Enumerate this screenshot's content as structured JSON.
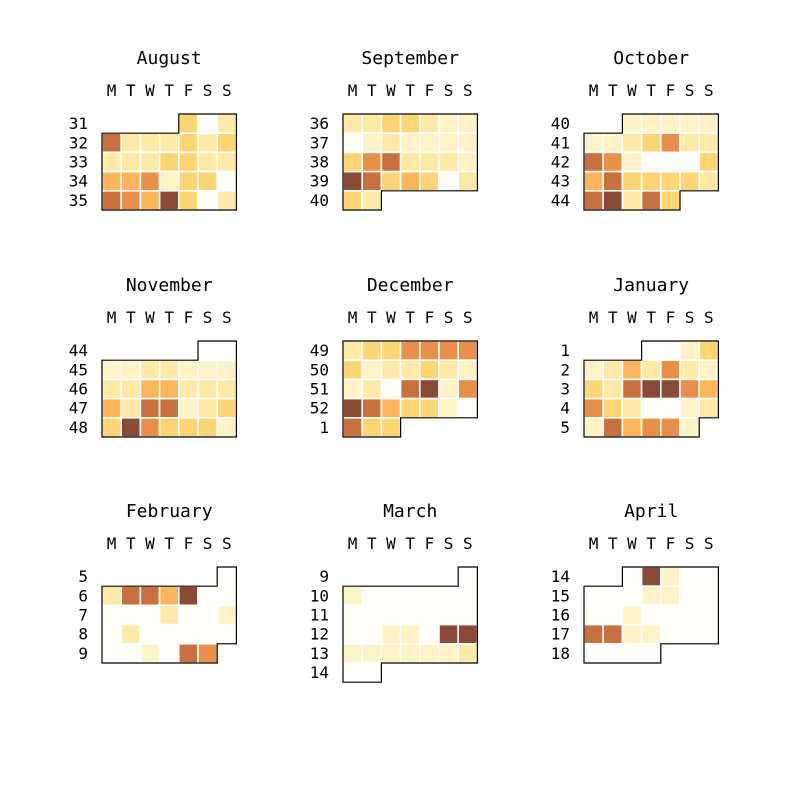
{
  "chart_data": {
    "type": "heatmap",
    "weekday_labels": [
      "M",
      "T",
      "W",
      "T",
      "F",
      "S",
      "S"
    ],
    "palette": [
      "#fffdf7",
      "#fff3c7",
      "#fee9a6",
      "#fdd574",
      "#fdb55a",
      "#e8904a",
      "#c8703e",
      "#8b4a38"
    ],
    "scale": {
      "min": 0,
      "max": 7
    },
    "months": [
      {
        "title": "August",
        "weeks": [
          "31",
          "32",
          "33",
          "34",
          "35"
        ],
        "start": 4,
        "values": [
          [
            3,
            0,
            2
          ],
          [
            6,
            2,
            2,
            2,
            3,
            2,
            3
          ],
          [
            2,
            2,
            2,
            3,
            3,
            2,
            2
          ],
          [
            4,
            4,
            5,
            1,
            3,
            3,
            0
          ],
          [
            6,
            5,
            4,
            7,
            3,
            0,
            2
          ]
        ]
      },
      {
        "title": "September",
        "weeks": [
          "36",
          "37",
          "38",
          "39",
          "40"
        ],
        "start": 0,
        "values": [
          [
            2,
            2,
            3,
            3,
            2,
            1,
            1
          ],
          [
            0,
            1,
            2,
            1,
            1,
            1,
            1
          ],
          [
            3,
            5,
            6,
            2,
            2,
            2,
            1
          ],
          [
            7,
            6,
            3,
            4,
            3,
            0,
            2
          ],
          [
            3,
            2
          ]
        ]
      },
      {
        "title": "October",
        "weeks": [
          "40",
          "41",
          "42",
          "43",
          "44"
        ],
        "start": 2,
        "values": [
          [
            1,
            1,
            1,
            1,
            1
          ],
          [
            1,
            1,
            2,
            3,
            5,
            2,
            2
          ],
          [
            6,
            5,
            1,
            0,
            0,
            0,
            3
          ],
          [
            4,
            6,
            3,
            3,
            3,
            3,
            2
          ],
          [
            6,
            7,
            2,
            6,
            3
          ]
        ]
      },
      {
        "title": "November",
        "weeks": [
          "44",
          "45",
          "46",
          "47",
          "48"
        ],
        "start": 5,
        "values": [
          [
            0,
            0
          ],
          [
            1,
            1,
            2,
            2,
            1,
            1,
            1
          ],
          [
            2,
            2,
            4,
            4,
            2,
            2,
            2
          ],
          [
            4,
            2,
            6,
            6,
            1,
            2,
            3
          ],
          [
            3,
            7,
            5,
            3,
            3,
            3,
            1
          ]
        ]
      },
      {
        "title": "December",
        "weeks": [
          "49",
          "50",
          "51",
          "52",
          "1"
        ],
        "start": 0,
        "values": [
          [
            2,
            3,
            3,
            5,
            5,
            5,
            5
          ],
          [
            3,
            1,
            2,
            2,
            3,
            2,
            1
          ],
          [
            1,
            2,
            0,
            6,
            7,
            1,
            5
          ],
          [
            7,
            6,
            4,
            3,
            3,
            1,
            0
          ],
          [
            6,
            3,
            3
          ]
        ]
      },
      {
        "title": "January",
        "weeks": [
          "1",
          "2",
          "3",
          "4",
          "5"
        ],
        "start": 3,
        "values": [
          [
            0,
            0,
            1,
            3
          ],
          [
            1,
            2,
            4,
            2,
            5,
            2,
            1
          ],
          [
            3,
            2,
            6,
            7,
            7,
            5,
            4
          ],
          [
            5,
            3,
            2,
            0,
            0,
            1,
            2
          ],
          [
            1,
            6,
            4,
            5,
            5,
            1
          ]
        ]
      },
      {
        "title": "February",
        "weeks": [
          "5",
          "6",
          "7",
          "8",
          "9"
        ],
        "start": 6,
        "values": [
          [
            0
          ],
          [
            2,
            6,
            6,
            4,
            7,
            0,
            0
          ],
          [
            0,
            0,
            0,
            2,
            0,
            0,
            1
          ],
          [
            0,
            2,
            0,
            0,
            0,
            0,
            0
          ],
          [
            0,
            0,
            1,
            0,
            6,
            5
          ]
        ]
      },
      {
        "title": "March",
        "weeks": [
          "9",
          "10",
          "11",
          "12",
          "13",
          "14"
        ],
        "start": 6,
        "values": [
          [
            0
          ],
          [
            1,
            0,
            0,
            0,
            0,
            0,
            0
          ],
          [
            0,
            0,
            0,
            0,
            0,
            0,
            0
          ],
          [
            0,
            0,
            1,
            1,
            0,
            7,
            7
          ],
          [
            1,
            1,
            1,
            1,
            1,
            1,
            2
          ],
          [
            0,
            0
          ]
        ]
      },
      {
        "title": "April",
        "weeks": [
          "14",
          "15",
          "16",
          "17",
          "18"
        ],
        "start": 2,
        "values": [
          [
            0,
            7,
            1,
            0,
            0
          ],
          [
            0,
            0,
            0,
            1,
            1,
            0,
            0
          ],
          [
            0,
            0,
            1,
            0,
            0,
            0,
            0
          ],
          [
            6,
            6,
            1,
            1,
            0,
            0,
            0
          ],
          [
            0,
            0,
            0,
            0
          ]
        ]
      }
    ]
  }
}
